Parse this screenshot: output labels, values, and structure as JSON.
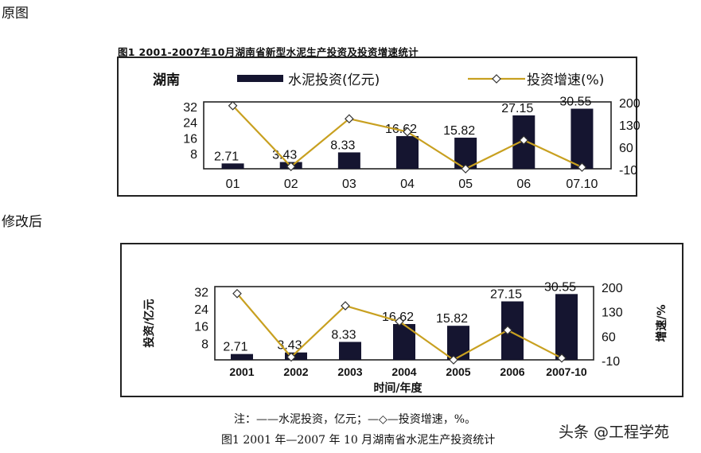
{
  "labels": {
    "before": "原图",
    "after": "修改后",
    "top_title": "图1  2001-2007年10月湖南省新型水泥生产投资及投资增速统计",
    "note": "注：——水泥投资，亿元；—◇—投资增速，%。",
    "caption": "图1      2001 年—2007 年 10 月湖南省水泥生产投资统计",
    "watermark": "头条 @工程学苑"
  },
  "colors": {
    "bar": "#151530",
    "line": "#c8a020",
    "frame": "#222222"
  },
  "chart_data": [
    {
      "type": "bar",
      "region": "湖南",
      "categories": [
        "01",
        "02",
        "03",
        "04",
        "05",
        "06",
        "07.10"
      ],
      "series": [
        {
          "name": "水泥投资(亿元)",
          "values": [
            2.71,
            3.43,
            8.33,
            16.62,
            15.82,
            27.15,
            30.55
          ]
        },
        {
          "name": "投资增速(%)",
          "type": "line",
          "axis": "right",
          "values": [
            188,
            -3,
            147,
            106,
            -10,
            80,
            -5
          ]
        }
      ],
      "data_labels": [
        "2.71",
        "3.43",
        "8.33",
        "16.62",
        "15.82",
        "27.15",
        "30.55"
      ],
      "y_left": {
        "ticks": [
          8,
          16,
          24,
          32
        ],
        "tick_labels": [
          "8",
          "16",
          "24",
          "32"
        ],
        "range": [
          0,
          34
        ]
      },
      "y_right": {
        "ticks": [
          -10,
          60,
          130,
          200
        ],
        "tick_labels": [
          "-10",
          "60",
          "130",
          "200"
        ],
        "range": [
          -10,
          200
        ]
      }
    },
    {
      "type": "bar",
      "categories": [
        "2001",
        "2002",
        "2003",
        "2004",
        "2005",
        "2006",
        "2007-10"
      ],
      "series": [
        {
          "values": [
            2.71,
            3.43,
            8.33,
            16.62,
            15.82,
            27.15,
            30.55
          ]
        },
        {
          "type": "line",
          "axis": "right",
          "values": [
            180,
            -2,
            145,
            100,
            -10,
            75,
            -5
          ]
        }
      ],
      "data_labels": [
        "2.71",
        "3.43",
        "8.33",
        "16.62",
        "15.82",
        "27.15",
        "30.55"
      ],
      "xlabel": "时间/年度",
      "ylabel": "投资/亿元",
      "ylabel_right": "增速/%",
      "y_left": {
        "ticks": [
          8,
          16,
          24,
          32
        ],
        "tick_labels": [
          "8",
          "16",
          "24",
          "32"
        ],
        "range": [
          0,
          34
        ]
      },
      "y_right": {
        "ticks": [
          -10,
          60,
          130,
          200
        ],
        "tick_labels": [
          "-10",
          "60",
          "130",
          "200"
        ],
        "range": [
          -10,
          200
        ]
      }
    }
  ]
}
